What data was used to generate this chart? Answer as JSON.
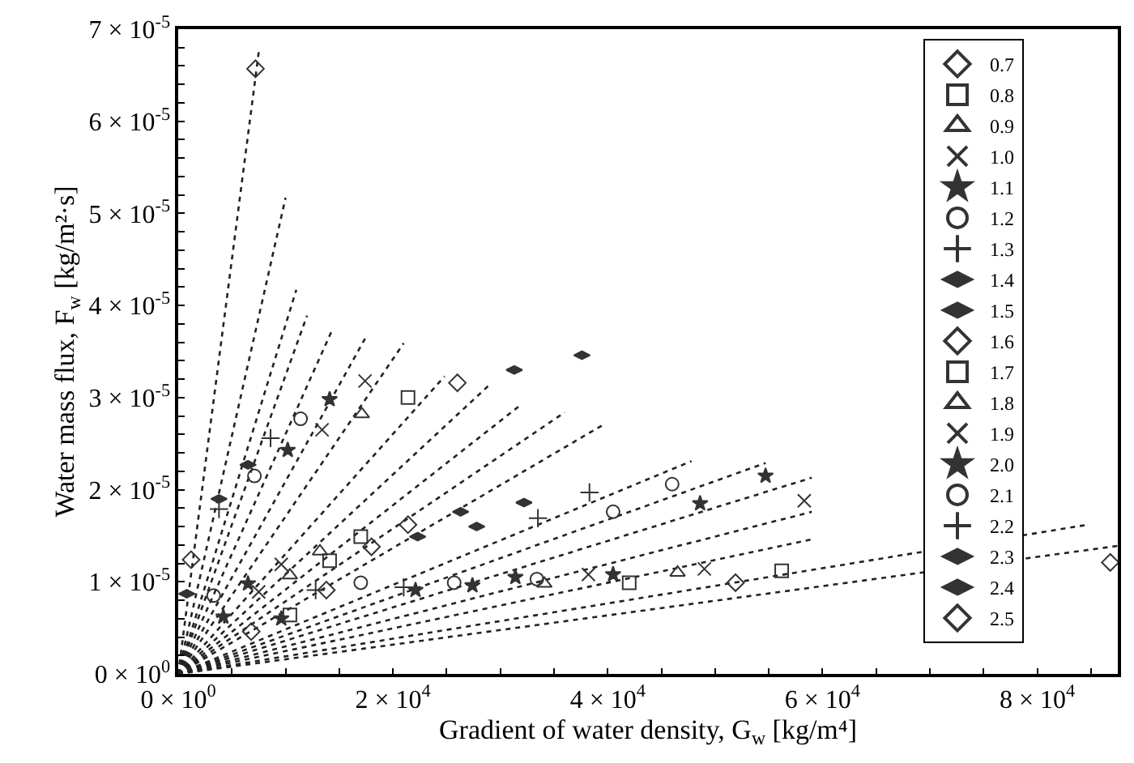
{
  "chart_data": {
    "type": "scatter",
    "xlabel": "Gradient of water density, G$_{w}$ [kg/m⁴]",
    "ylabel": "Water mass flux, F$_{w}$ [kg/m²·s]",
    "xlim": [
      0,
      87500
    ],
    "ylim": [
      0,
      7e-05
    ],
    "xticks": [
      {
        "value": 0,
        "label": "0 × 10$^{0}$"
      },
      {
        "value": 5000,
        "label": null
      },
      {
        "value": 10000,
        "label": null
      },
      {
        "value": 15000,
        "label": null
      },
      {
        "value": 20000,
        "label": "2 × 10$^{4}$"
      },
      {
        "value": 25000,
        "label": null
      },
      {
        "value": 30000,
        "label": null
      },
      {
        "value": 35000,
        "label": null
      },
      {
        "value": 40000,
        "label": "4 × 10$^{4}$"
      },
      {
        "value": 45000,
        "label": null
      },
      {
        "value": 50000,
        "label": null
      },
      {
        "value": 55000,
        "label": null
      },
      {
        "value": 60000,
        "label": "6 × 10$^{4}$"
      },
      {
        "value": 65000,
        "label": null
      },
      {
        "value": 70000,
        "label": null
      },
      {
        "value": 75000,
        "label": null
      },
      {
        "value": 80000,
        "label": "8 × 10$^{4}$"
      },
      {
        "value": 85000,
        "label": null
      }
    ],
    "yticks": [
      {
        "value": 0,
        "label": "0 × 10$^{0}$"
      },
      {
        "value": 2e-06,
        "label": null
      },
      {
        "value": 4e-06,
        "label": null
      },
      {
        "value": 6e-06,
        "label": null
      },
      {
        "value": 8e-06,
        "label": null
      },
      {
        "value": 1e-05,
        "label": "1 × 10$^{-5}$"
      },
      {
        "value": 1.2e-05,
        "label": null
      },
      {
        "value": 1.4e-05,
        "label": null
      },
      {
        "value": 1.6e-05,
        "label": null
      },
      {
        "value": 1.8e-05,
        "label": null
      },
      {
        "value": 2e-05,
        "label": "2 × 10$^{-5}$"
      },
      {
        "value": 2.2e-05,
        "label": null
      },
      {
        "value": 2.4e-05,
        "label": null
      },
      {
        "value": 2.6e-05,
        "label": null
      },
      {
        "value": 2.8e-05,
        "label": null
      },
      {
        "value": 3e-05,
        "label": "3 × 10$^{-5}$"
      },
      {
        "value": 3.2e-05,
        "label": null
      },
      {
        "value": 3.4e-05,
        "label": null
      },
      {
        "value": 3.6e-05,
        "label": null
      },
      {
        "value": 3.8e-05,
        "label": null
      },
      {
        "value": 4e-05,
        "label": "4 × 10$^{-5}$"
      },
      {
        "value": 4.2e-05,
        "label": null
      },
      {
        "value": 4.4e-05,
        "label": null
      },
      {
        "value": 4.6e-05,
        "label": null
      },
      {
        "value": 4.8e-05,
        "label": null
      },
      {
        "value": 5e-05,
        "label": "5 × 10$^{-5}$"
      },
      {
        "value": 5.2e-05,
        "label": null
      },
      {
        "value": 5.4e-05,
        "label": null
      },
      {
        "value": 5.6e-05,
        "label": null
      },
      {
        "value": 5.8e-05,
        "label": null
      },
      {
        "value": 6e-05,
        "label": "6 × 10$^{-5}$"
      },
      {
        "value": 6.2e-05,
        "label": null
      },
      {
        "value": 6.4e-05,
        "label": null
      },
      {
        "value": 6.6e-05,
        "label": null
      },
      {
        "value": 6.8e-05,
        "label": null
      },
      {
        "value": 7e-05,
        "label": "7 × 10$^{-5}$"
      }
    ],
    "legend": "top right",
    "series": [
      {
        "name": "0.7",
        "color": "#333333",
        "marker": "diamond",
        "x": [
          7200,
          1200
        ],
        "values": [
          6.57e-05,
          1.24e-05
        ]
      },
      {
        "name": "0.8",
        "color": "#333333",
        "marker": "square",
        "x": [
          21400,
          14100,
          17000
        ],
        "values": [
          3e-05,
          1.23e-05,
          1.49e-05
        ]
      },
      {
        "name": "0.9",
        "color": "#333333",
        "marker": "triangle",
        "x": [
          17100,
          10400,
          13200
        ],
        "values": [
          2.82e-05,
          1.07e-05,
          1.33e-05
        ]
      },
      {
        "name": "1.0",
        "color": "#333333",
        "marker": "x",
        "x": [
          17400,
          13400,
          7500,
          9600
        ],
        "values": [
          3.18e-05,
          2.65e-05,
          8.9e-06,
          1.19e-05
        ]
      },
      {
        "name": "1.1",
        "color": "#333333",
        "marker": "star",
        "x": [
          14100,
          10200,
          6500,
          4200,
          9600
        ],
        "values": [
          2.98e-05,
          2.43e-05,
          9.8e-06,
          6.2e-06,
          6e-06
        ]
      },
      {
        "name": "1.2",
        "color": "#333333",
        "marker": "circle",
        "x": [
          11400,
          7100,
          3300,
          17000
        ],
        "values": [
          2.77e-05,
          2.15e-05,
          8.5e-06,
          9.9e-06
        ]
      },
      {
        "name": "1.3",
        "color": "#333333",
        "marker": "cross",
        "x": [
          8600,
          3800,
          12800
        ],
        "values": [
          2.56e-05,
          1.79e-05,
          9.1e-06
        ]
      },
      {
        "name": "1.4",
        "color": "#333333",
        "x": [
          6500,
          800
        ],
        "values": [
          2.27e-05,
          8.7e-06
        ]
      },
      {
        "name": "1.5",
        "color": "#333333",
        "x": [
          3800,
          22300,
          26300
        ],
        "values": [
          1.9e-05,
          1.49e-05,
          1.76e-05
        ]
      },
      {
        "name": "1.6",
        "color": "#333333",
        "marker": "diamond",
        "x": [
          26000,
          18000,
          21400,
          13800,
          6800
        ],
        "values": [
          3.16e-05,
          1.38e-05,
          1.62e-05,
          9.1e-06,
          4.6e-06
        ]
      },
      {
        "name": "1.7",
        "color": "#333333",
        "marker": "square",
        "x": [
          10400,
          42000,
          56200
        ],
        "values": [
          6.4e-06,
          9.9e-06,
          1.12e-05
        ]
      },
      {
        "name": "1.8",
        "color": "#333333",
        "marker": "triangle",
        "x": [
          34100,
          46500
        ],
        "values": [
          9.8e-06,
          1.1e-05
        ]
      },
      {
        "name": "1.9",
        "color": "#333333",
        "marker": "x",
        "x": [
          38200,
          49000,
          58300
        ],
        "values": [
          1.08e-05,
          1.14e-05,
          1.88e-05
        ]
      },
      {
        "name": "2.0",
        "color": "#333333",
        "marker": "star",
        "x": [
          22100,
          27400,
          31400,
          40500,
          48600,
          54700
        ],
        "values": [
          9.1e-06,
          9.6e-06,
          1.05e-05,
          1.08e-05,
          1.85e-05,
          2.15e-05
        ]
      },
      {
        "name": "2.1",
        "color": "#333333",
        "marker": "circle",
        "x": [
          25700,
          33400,
          40500,
          46000
        ],
        "values": [
          9.9e-06,
          1.03e-05,
          1.76e-05,
          2.06e-05
        ]
      },
      {
        "name": "2.2",
        "color": "#333333",
        "marker": "cross",
        "x": [
          21000,
          33500,
          38300
        ],
        "values": [
          9.4e-06,
          1.69e-05,
          1.97e-05
        ]
      },
      {
        "name": "2.3",
        "color": "#333333",
        "x": [
          27800,
          32200
        ],
        "values": [
          1.6e-05,
          1.86e-05
        ]
      },
      {
        "name": "2.4",
        "color": "#333333",
        "x": [
          31300,
          37600
        ],
        "values": [
          3.3e-05,
          3.46e-05
        ]
      },
      {
        "name": "2.5",
        "color": "#333333",
        "marker": "diamond",
        "x": [
          51900,
          86800
        ],
        "values": [
          9.9e-06,
          1.21e-05
        ]
      },
      {
        "type": "line",
        "color": "#222222",
        "line_style": "dotted",
        "x": [
          0,
          7500
        ],
        "values": [
          0,
          6.75e-05
        ]
      },
      {
        "type": "line",
        "color": "#222222",
        "line_style": "dotted",
        "x": [
          0,
          10000
        ],
        "values": [
          0,
          5.17e-05
        ]
      },
      {
        "type": "line",
        "color": "#222222",
        "line_style": "dotted",
        "x": [
          0,
          11000
        ],
        "values": [
          0,
          4.17e-05
        ]
      },
      {
        "type": "line",
        "color": "#222222",
        "line_style": "dotted",
        "x": [
          0,
          12000
        ],
        "values": [
          0,
          3.89e-05
        ]
      },
      {
        "type": "line",
        "color": "#222222",
        "line_style": "dotted",
        "x": [
          0,
          14400
        ],
        "values": [
          0,
          3.75e-05
        ]
      },
      {
        "type": "line",
        "color": "#222222",
        "line_style": "dotted",
        "x": [
          0,
          17400
        ],
        "values": [
          0,
          3.64e-05
        ]
      },
      {
        "type": "line",
        "color": "#222222",
        "line_style": "dotted",
        "x": [
          0,
          21000
        ],
        "values": [
          0,
          3.59e-05
        ]
      },
      {
        "type": "line",
        "color": "#222222",
        "line_style": "dotted",
        "x": [
          0,
          24800
        ],
        "values": [
          0,
          3.23e-05
        ]
      },
      {
        "type": "line",
        "color": "#222222",
        "line_style": "dotted",
        "x": [
          0,
          29000
        ],
        "values": [
          0,
          3.14e-05
        ]
      },
      {
        "type": "line",
        "color": "#222222",
        "line_style": "dotted",
        "x": [
          0,
          32000
        ],
        "values": [
          0,
          2.93e-05
        ]
      },
      {
        "type": "line",
        "color": "#222222",
        "line_style": "dotted",
        "x": [
          0,
          36000
        ],
        "values": [
          0,
          2.84e-05
        ]
      },
      {
        "type": "line",
        "color": "#222222",
        "line_style": "dotted",
        "x": [
          0,
          39800
        ],
        "values": [
          0,
          2.72e-05
        ]
      },
      {
        "type": "line",
        "color": "#222222",
        "line_style": "dotted",
        "x": [
          0,
          47800
        ],
        "values": [
          0,
          2.31e-05
        ]
      },
      {
        "type": "line",
        "color": "#222222",
        "line_style": "dotted",
        "x": [
          0,
          54700
        ],
        "values": [
          0,
          2.29e-05
        ]
      },
      {
        "type": "line",
        "color": "#222222",
        "line_style": "dotted",
        "x": [
          0,
          59000
        ],
        "values": [
          0,
          2.13e-05
        ]
      },
      {
        "type": "line",
        "color": "#222222",
        "line_style": "dotted",
        "x": [
          0,
          59000
        ],
        "values": [
          0,
          1.76e-05
        ]
      },
      {
        "type": "line",
        "color": "#222222",
        "line_style": "dotted",
        "x": [
          0,
          59000
        ],
        "values": [
          0,
          1.46e-05
        ]
      },
      {
        "type": "line",
        "color": "#222222",
        "line_style": "dotted",
        "x": [
          0,
          84700
        ],
        "values": [
          0,
          1.62e-05
        ]
      },
      {
        "type": "line",
        "color": "#222222",
        "line_style": "dotted",
        "x": [
          0,
          87500
        ],
        "values": [
          0,
          1.39e-05
        ]
      }
    ]
  }
}
